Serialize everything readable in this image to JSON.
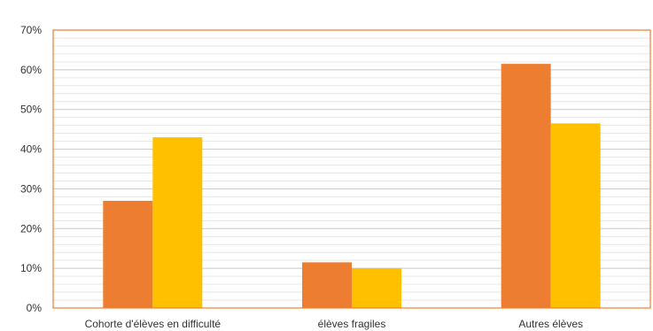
{
  "chart_data": {
    "type": "bar",
    "categories": [
      "Cohorte d'élèves en difficulté",
      "élèves fragiles",
      "Autres élèves"
    ],
    "series": [
      {
        "values": [
          0.27,
          0.115,
          0.615
        ],
        "color": "#ED7D31"
      },
      {
        "values": [
          0.43,
          0.1,
          0.465
        ],
        "color": "#FFC000"
      }
    ],
    "ylim": [
      0,
      0.7
    ],
    "y_major_ticks": [
      0,
      0.1,
      0.2,
      0.3,
      0.4,
      0.5,
      0.6,
      0.7
    ],
    "y_tick_labels": [
      "0%",
      "10%",
      "20%",
      "30%",
      "40%",
      "50%",
      "60%",
      "70%"
    ],
    "y_minor_step": 0.02,
    "grid": true,
    "plot_border_color": "#ED7D31",
    "title": "",
    "xlabel": "",
    "ylabel": ""
  }
}
